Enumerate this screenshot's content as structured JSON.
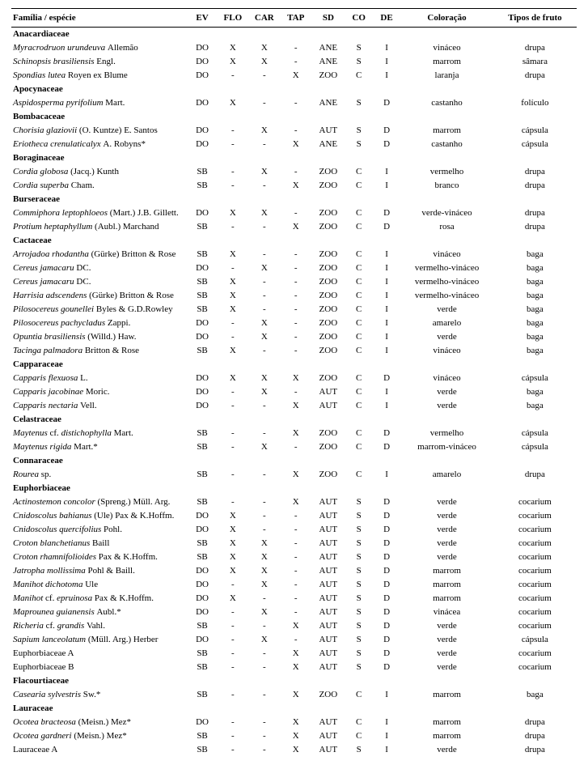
{
  "headers": {
    "fam": "Família / espécie",
    "ev": "EV",
    "flo": "FLO",
    "car": "CAR",
    "tap": "TAP",
    "sd": "SD",
    "co": "CO",
    "de": "DE",
    "color": "Coloração",
    "fruit": "Tipos de fruto"
  },
  "rows": [
    {
      "type": "family",
      "name": "Anacardiaceae"
    },
    {
      "type": "species",
      "species": "Myracrodruon urundeuva",
      "auth": "Allemão",
      "ev": "DO",
      "flo": "X",
      "car": "X",
      "tap": "-",
      "sd": "ANE",
      "co": "S",
      "de": "I",
      "color": "vináceo",
      "fruit": "drupa"
    },
    {
      "type": "species",
      "species": "Schinopsis brasiliensis",
      "auth": "Engl.",
      "ev": "DO",
      "flo": "X",
      "car": "X",
      "tap": "-",
      "sd": "ANE",
      "co": "S",
      "de": "I",
      "color": "marrom",
      "fruit": "sâmara"
    },
    {
      "type": "species",
      "species": "Spondias lutea",
      "auth": "Royen ex Blume",
      "ev": "DO",
      "flo": "-",
      "car": "-",
      "tap": "X",
      "sd": "ZOO",
      "co": "C",
      "de": "I",
      "color": "laranja",
      "fruit": "drupa"
    },
    {
      "type": "family",
      "name": "Apocynaceae"
    },
    {
      "type": "species",
      "species": "Aspidosperma pyrifolium",
      "auth": "Mart.",
      "ev": "DO",
      "flo": "X",
      "car": "-",
      "tap": "-",
      "sd": "ANE",
      "co": "S",
      "de": "D",
      "color": "castanho",
      "fruit": "folículo"
    },
    {
      "type": "family",
      "name": "Bombacaceae"
    },
    {
      "type": "species",
      "species": "Chorisia glaziovii",
      "auth": "(O. Kuntze) E. Santos",
      "ev": "DO",
      "flo": "-",
      "car": "X",
      "tap": "-",
      "sd": "AUT",
      "co": "S",
      "de": "D",
      "color": "marrom",
      "fruit": "cápsula"
    },
    {
      "type": "species",
      "species": "Eriotheca crenulaticalyx",
      "auth": "A. Robyns*",
      "ev": "DO",
      "flo": "-",
      "car": "-",
      "tap": "X",
      "sd": "ANE",
      "co": "S",
      "de": "D",
      "color": "castanho",
      "fruit": "cápsula"
    },
    {
      "type": "family",
      "name": "Boraginaceae"
    },
    {
      "type": "species",
      "species": "Cordia globosa",
      "auth": "(Jacq.) Kunth",
      "ev": "SB",
      "flo": "-",
      "car": "X",
      "tap": "-",
      "sd": "ZOO",
      "co": "C",
      "de": "I",
      "color": "vermelho",
      "fruit": "drupa"
    },
    {
      "type": "species",
      "species": "Cordia superba",
      "auth": "Cham.",
      "ev": "SB",
      "flo": "-",
      "car": "-",
      "tap": "X",
      "sd": "ZOO",
      "co": "C",
      "de": "I",
      "color": "branco",
      "fruit": "drupa"
    },
    {
      "type": "family",
      "name": "Burseraceae"
    },
    {
      "type": "species",
      "species": "Commiphora leptophloeos",
      "auth": "(Mart.) J.B. Gillett.",
      "ev": "DO",
      "flo": "X",
      "car": "X",
      "tap": "-",
      "sd": "ZOO",
      "co": "C",
      "de": "D",
      "color": "verde-vináceo",
      "fruit": "drupa"
    },
    {
      "type": "species",
      "species": "Protium heptaphyllum",
      "auth": "(Aubl.) Marchand",
      "ev": "SB",
      "flo": "-",
      "car": "-",
      "tap": "X",
      "sd": "ZOO",
      "co": "C",
      "de": "D",
      "color": "rosa",
      "fruit": "drupa"
    },
    {
      "type": "family",
      "name": "Cactaceae"
    },
    {
      "type": "species",
      "species": "Arrojadoa rhodantha",
      "auth": "(Gürke) Britton & Rose",
      "ev": "SB",
      "flo": "X",
      "car": "-",
      "tap": "-",
      "sd": "ZOO",
      "co": "C",
      "de": "I",
      "color": "vináceo",
      "fruit": "baga"
    },
    {
      "type": "species",
      "species": "Cereus jamacaru",
      "auth": "DC.",
      "ev": "DO",
      "flo": "-",
      "car": "X",
      "tap": "-",
      "sd": "ZOO",
      "co": "C",
      "de": "I",
      "color": "vermelho-vináceo",
      "fruit": "baga"
    },
    {
      "type": "species",
      "species": "Cereus jamacaru",
      "auth": "DC.",
      "ev": "SB",
      "flo": "X",
      "car": "-",
      "tap": "-",
      "sd": "ZOO",
      "co": "C",
      "de": "I",
      "color": "vermelho-vináceo",
      "fruit": "baga"
    },
    {
      "type": "species",
      "species": "Harrisia adscendens",
      "auth": "(Gürke) Britton & Rose",
      "ev": "SB",
      "flo": "X",
      "car": "-",
      "tap": "-",
      "sd": "ZOO",
      "co": "C",
      "de": "I",
      "color": "vermelho-vináceo",
      "fruit": "baga"
    },
    {
      "type": "species",
      "species": "Pilosocereus gounellei",
      "auth": "Byles & G.D.Rowley",
      "ev": "SB",
      "flo": "X",
      "car": "-",
      "tap": "-",
      "sd": "ZOO",
      "co": "C",
      "de": "I",
      "color": "verde",
      "fruit": "baga"
    },
    {
      "type": "species",
      "species": "Pilosocereus pachycladus",
      "auth": "Zappi.",
      "ev": "DO",
      "flo": "-",
      "car": "X",
      "tap": "-",
      "sd": "ZOO",
      "co": "C",
      "de": "I",
      "color": "amarelo",
      "fruit": "baga"
    },
    {
      "type": "species",
      "species": "Opuntia brasiliensis",
      "auth": "(Willd.) Haw.",
      "ev": "DO",
      "flo": "-",
      "car": "X",
      "tap": "-",
      "sd": "ZOO",
      "co": "C",
      "de": "I",
      "color": "verde",
      "fruit": "baga"
    },
    {
      "type": "species",
      "species": "Tacinga palmadora",
      "auth": "Britton & Rose",
      "ev": "SB",
      "flo": "X",
      "car": "-",
      "tap": "-",
      "sd": "ZOO",
      "co": "C",
      "de": "I",
      "color": "vináceo",
      "fruit": "baga"
    },
    {
      "type": "family",
      "name": "Capparaceae"
    },
    {
      "type": "species",
      "species": "Capparis flexuosa",
      "auth": "L.",
      "ev": "DO",
      "flo": "X",
      "car": "X",
      "tap": "X",
      "sd": "ZOO",
      "co": "C",
      "de": "D",
      "color": "vináceo",
      "fruit": "cápsula"
    },
    {
      "type": "species",
      "species": "Capparis jacobinae",
      "auth": "Moric.",
      "ev": "DO",
      "flo": "-",
      "car": "X",
      "tap": "-",
      "sd": "AUT",
      "co": "C",
      "de": "I",
      "color": "verde",
      "fruit": "baga"
    },
    {
      "type": "species",
      "species": "Capparis nectaria",
      "auth": "Vell.",
      "ev": "DO",
      "flo": "-",
      "car": "-",
      "tap": "X",
      "sd": "AUT",
      "co": "C",
      "de": "I",
      "color": "verde",
      "fruit": "baga"
    },
    {
      "type": "family",
      "name": "Celastraceae"
    },
    {
      "type": "species",
      "species": "Maytenus",
      "auth": "cf.",
      "species2": "distichophylla",
      "auth2": "Mart.",
      "ev": "SB",
      "flo": "-",
      "car": "-",
      "tap": "X",
      "sd": "ZOO",
      "co": "C",
      "de": "D",
      "color": "vermelho",
      "fruit": "cápsula"
    },
    {
      "type": "species",
      "species": "Maytenus rigida",
      "auth": "Mart.*",
      "ev": "SB",
      "flo": "-",
      "car": "X",
      "tap": "-",
      "sd": "ZOO",
      "co": "C",
      "de": "D",
      "color": "marrom-vináceo",
      "fruit": "cápsula"
    },
    {
      "type": "family",
      "name": "Connaraceae"
    },
    {
      "type": "species",
      "species": "Rourea",
      "auth": "sp.",
      "ev": "SB",
      "flo": "-",
      "car": "-",
      "tap": "X",
      "sd": "ZOO",
      "co": "C",
      "de": "I",
      "color": "amarelo",
      "fruit": "drupa"
    },
    {
      "type": "family",
      "name": "Euphorbiaceae"
    },
    {
      "type": "species",
      "species": "Actinostemon concolor",
      "auth": "(Spreng.) Müll. Arg.",
      "ev": "SB",
      "flo": "-",
      "car": "-",
      "tap": "X",
      "sd": "AUT",
      "co": "S",
      "de": "D",
      "color": "verde",
      "fruit": "cocarium"
    },
    {
      "type": "species",
      "species": "Cnidoscolus bahianus",
      "auth": "(Ule) Pax & K.Hoffm.",
      "ev": "DO",
      "flo": "X",
      "car": "-",
      "tap": "-",
      "sd": "AUT",
      "co": "S",
      "de": "D",
      "color": "verde",
      "fruit": "cocarium"
    },
    {
      "type": "species",
      "species": "Cnidoscolus quercifolius",
      "auth": "Pohl.",
      "ev": "DO",
      "flo": "X",
      "car": "-",
      "tap": "-",
      "sd": "AUT",
      "co": "S",
      "de": "D",
      "color": "verde",
      "fruit": "cocarium"
    },
    {
      "type": "species",
      "species": "Croton blanchetianus",
      "auth": "Baill",
      "ev": "SB",
      "flo": "X",
      "car": "X",
      "tap": "-",
      "sd": "AUT",
      "co": "S",
      "de": "D",
      "color": "verde",
      "fruit": "cocarium"
    },
    {
      "type": "species",
      "species": "Croton rhamnifolioides",
      "auth": "Pax & K.Hoffm.",
      "ev": "SB",
      "flo": "X",
      "car": "X",
      "tap": "-",
      "sd": "AUT",
      "co": "S",
      "de": "D",
      "color": "verde",
      "fruit": "cocarium"
    },
    {
      "type": "species",
      "species": "Jatropha mollissima",
      "auth": "Pohl & Baill.",
      "ev": "DO",
      "flo": "X",
      "car": "X",
      "tap": "-",
      "sd": "AUT",
      "co": "S",
      "de": "D",
      "color": "marrom",
      "fruit": "cocarium"
    },
    {
      "type": "species",
      "species": "Manihot dichotoma",
      "auth": "Ule",
      "ev": "DO",
      "flo": "-",
      "car": "X",
      "tap": "-",
      "sd": "AUT",
      "co": "S",
      "de": "D",
      "color": "marrom",
      "fruit": "cocarium"
    },
    {
      "type": "species",
      "species": "Manihot",
      "auth": "cf.",
      "species2": "epruinosa",
      "auth2": "Pax & K.Hoffm.",
      "ev": "DO",
      "flo": "X",
      "car": "-",
      "tap": "-",
      "sd": "AUT",
      "co": "S",
      "de": "D",
      "color": "marrom",
      "fruit": "cocarium"
    },
    {
      "type": "species",
      "species": "Maprounea guianensis",
      "auth": "Aubl.*",
      "ev": "DO",
      "flo": "-",
      "car": "X",
      "tap": "-",
      "sd": "AUT",
      "co": "S",
      "de": "D",
      "color": "vinácea",
      "fruit": "cocarium"
    },
    {
      "type": "species",
      "species": "Richeria",
      "auth": "cf.",
      "species2": "grandis",
      "auth2": "Vahl.",
      "ev": "SB",
      "flo": "-",
      "car": "-",
      "tap": "X",
      "sd": "AUT",
      "co": "S",
      "de": "D",
      "color": "verde",
      "fruit": "cocarium"
    },
    {
      "type": "species",
      "species": "Sapium lanceolatum",
      "auth": "(Müll. Arg.) Herber",
      "ev": "DO",
      "flo": "-",
      "car": "X",
      "tap": "-",
      "sd": "AUT",
      "co": "S",
      "de": "D",
      "color": "verde",
      "fruit": "cápsula"
    },
    {
      "type": "species",
      "species": "",
      "auth": "Euphorbiaceae A",
      "plain": true,
      "ev": "SB",
      "flo": "-",
      "car": "-",
      "tap": "X",
      "sd": "AUT",
      "co": "S",
      "de": "D",
      "color": "verde",
      "fruit": "cocarium"
    },
    {
      "type": "species",
      "species": "",
      "auth": "Euphorbiaceae B",
      "plain": true,
      "ev": "SB",
      "flo": "-",
      "car": "-",
      "tap": "X",
      "sd": "AUT",
      "co": "S",
      "de": "D",
      "color": "verde",
      "fruit": "cocarium"
    },
    {
      "type": "family",
      "name": "Flacourtiaceae"
    },
    {
      "type": "species",
      "species": "Casearia sylvestris",
      "auth": "Sw.*",
      "ev": "SB",
      "flo": "-",
      "car": "-",
      "tap": "X",
      "sd": "ZOO",
      "co": "C",
      "de": "I",
      "color": "marrom",
      "fruit": "baga"
    },
    {
      "type": "family",
      "name": "Lauraceae"
    },
    {
      "type": "species",
      "species": "Ocotea bracteosa",
      "auth": "(Meisn.) Mez*",
      "ev": "DO",
      "flo": "-",
      "car": "-",
      "tap": "X",
      "sd": "AUT",
      "co": "C",
      "de": "I",
      "color": "marrom",
      "fruit": "drupa"
    },
    {
      "type": "species",
      "species": "Ocotea gardneri",
      "auth": "(Meisn.) Mez*",
      "ev": "SB",
      "flo": "-",
      "car": "-",
      "tap": "X",
      "sd": "AUT",
      "co": "C",
      "de": "I",
      "color": "marrom",
      "fruit": "drupa"
    },
    {
      "type": "species",
      "species": "",
      "auth": "Lauraceae A",
      "plain": true,
      "ev": "SB",
      "flo": "-",
      "car": "-",
      "tap": "X",
      "sd": "AUT",
      "co": "S",
      "de": "I",
      "color": "verde",
      "fruit": "drupa"
    }
  ]
}
